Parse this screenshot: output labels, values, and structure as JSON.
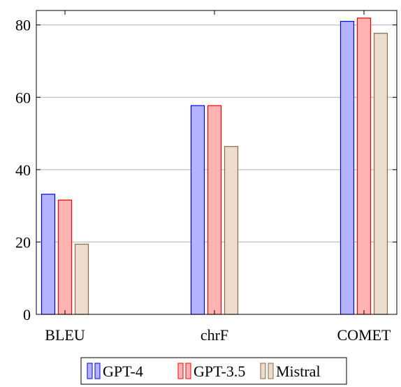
{
  "chart_data": {
    "type": "bar",
    "categories": [
      "BLEU",
      "chrF",
      "COMET"
    ],
    "series": [
      {
        "name": "GPT-4",
        "values": [
          33.2,
          57.7,
          81.0
        ],
        "fill": "#b3b3ff",
        "stroke": "#0000ff"
      },
      {
        "name": "GPT-3.5",
        "values": [
          31.6,
          57.7,
          81.9
        ],
        "fill": "#ffb3b3",
        "stroke": "#ff0000"
      },
      {
        "name": "Mistral",
        "values": [
          19.4,
          46.4,
          77.7
        ],
        "fill": "#ebdccb",
        "stroke": "#8b6a4a"
      }
    ],
    "ylim": [
      0,
      84
    ],
    "yticks": [
      0,
      20,
      40,
      60,
      80
    ],
    "grid": "horizontal",
    "legend_position": "bottom"
  }
}
